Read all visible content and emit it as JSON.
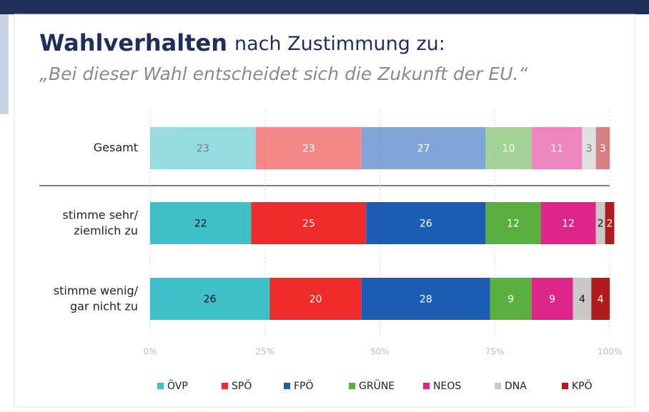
{
  "chart_data": {
    "type": "stacked_barh",
    "title": [
      "Wahlverhalten",
      "nach Zustimmung zu:"
    ],
    "subtitle": "„Bei dieser Wahl entscheidet sich die Zukunft der EU.“",
    "categories": [
      "Gesamt",
      "stimme sehr/\nziemlich zu",
      "stimme wenig/\ngar nicht zu"
    ],
    "series": [
      {
        "name": "ÖVP",
        "color": "#3fc0c9",
        "values": [
          23,
          22,
          26
        ]
      },
      {
        "name": "SPÖ",
        "color": "#ee2a2a",
        "values": [
          23,
          25,
          20
        ]
      },
      {
        "name": "FPÖ",
        "color": "#1b5cb5",
        "values": [
          27,
          26,
          28
        ]
      },
      {
        "name": "GRÜNE",
        "color": "#5aaf3e",
        "values": [
          10,
          12,
          9
        ]
      },
      {
        "name": "NEOS",
        "color": "#e0258a",
        "values": [
          11,
          12,
          9
        ]
      },
      {
        "name": "DNA",
        "color": "#c8c8c8",
        "values": [
          3,
          2,
          4
        ]
      },
      {
        "name": "KPÖ",
        "color": "#b01c1c",
        "values": [
          3,
          2,
          4
        ]
      }
    ],
    "xlim": [
      0,
      100
    ],
    "xticks": [
      {
        "value": 0,
        "label": "0%"
      },
      {
        "value": 25,
        "label": "25%"
      },
      {
        "value": 50,
        "label": "50%"
      },
      {
        "value": 75,
        "label": "75%"
      },
      {
        "value": 100,
        "label": "100%"
      }
    ],
    "grid": true
  }
}
